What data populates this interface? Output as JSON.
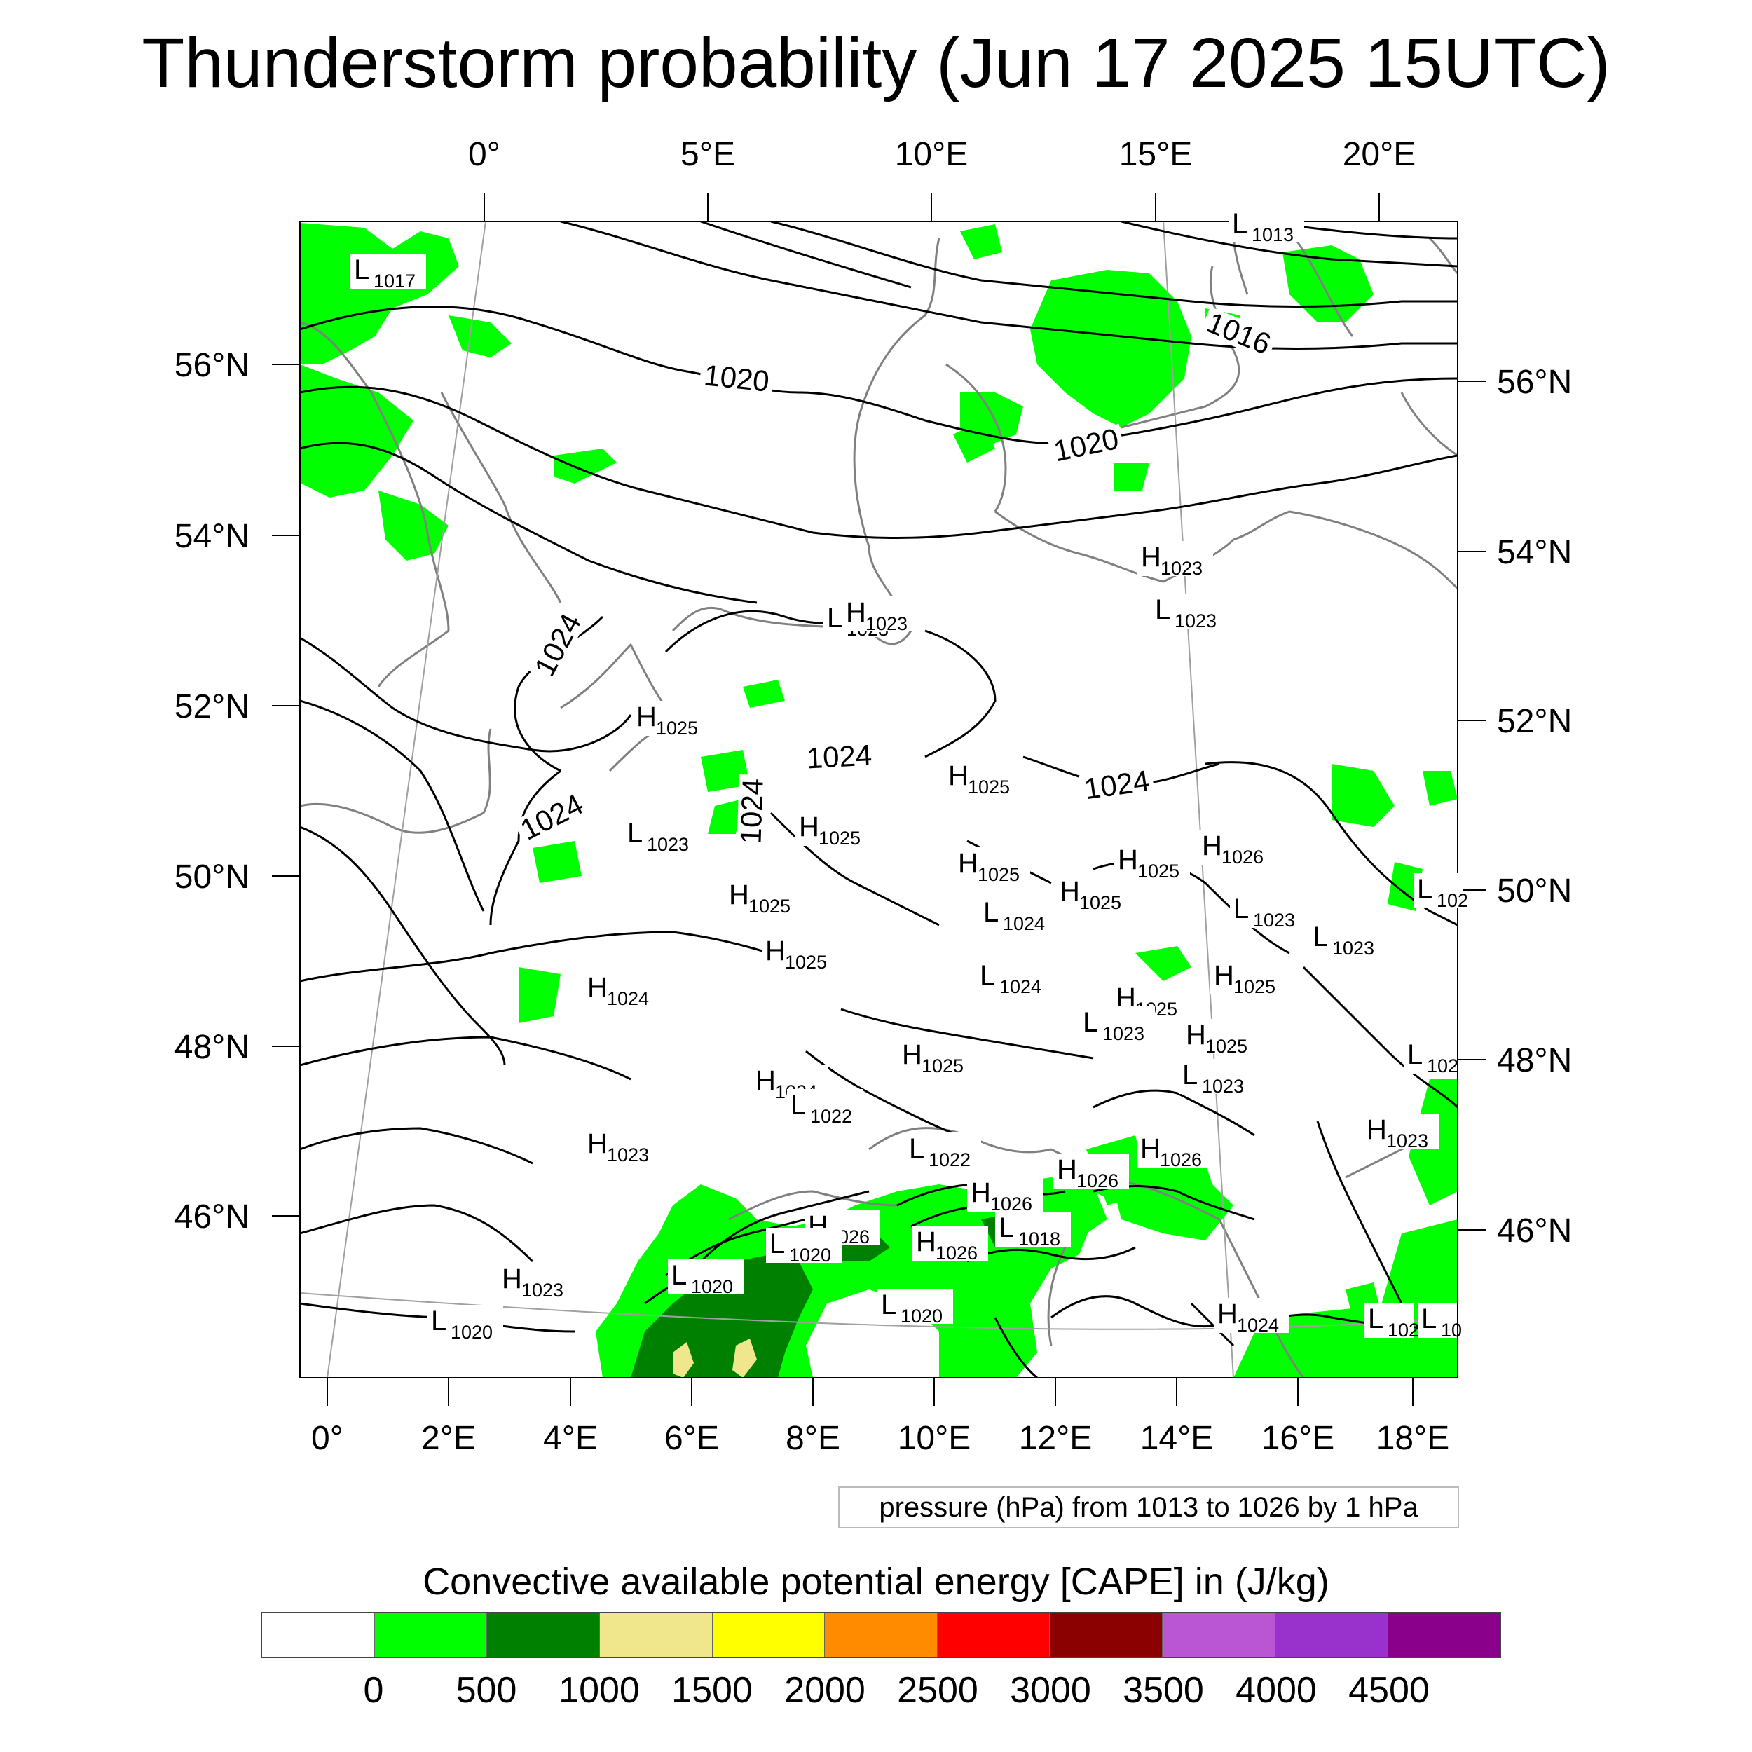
{
  "title": "Thunderstorm probability (Jun 17 2025 15UTC)",
  "top_lon_labels": [
    "0°",
    "5°E",
    "10°E",
    "15°E",
    "20°E"
  ],
  "bottom_lon_labels": [
    "0°",
    "2°E",
    "4°E",
    "6°E",
    "8°E",
    "10°E",
    "12°E",
    "14°E",
    "16°E",
    "18°E"
  ],
  "left_lat_labels": [
    "56°N",
    "54°N",
    "52°N",
    "50°N",
    "48°N",
    "46°N"
  ],
  "right_lat_labels": [
    "56°N",
    "54°N",
    "52°N",
    "50°N",
    "48°N",
    "46°N"
  ],
  "contour_labels": [
    "1016",
    "1020",
    "1020",
    "1024",
    "1024",
    "1024",
    "1024",
    "1024"
  ],
  "pressure_centers": [
    {
      "type": "L",
      "value": "1017"
    },
    {
      "type": "L",
      "value": "1013"
    },
    {
      "type": "H",
      "value": "1023"
    },
    {
      "type": "L",
      "value": "1023"
    },
    {
      "type": "L",
      "value": "1023"
    },
    {
      "type": "H",
      "value": "1023"
    },
    {
      "type": "H",
      "value": "1025"
    },
    {
      "type": "H",
      "value": "1025"
    },
    {
      "type": "L",
      "value": "1023"
    },
    {
      "type": "H",
      "value": "1025"
    },
    {
      "type": "H",
      "value": "1025"
    },
    {
      "type": "H",
      "value": "1026"
    },
    {
      "type": "H",
      "value": "1025"
    },
    {
      "type": "H",
      "value": "1025"
    },
    {
      "type": "H",
      "value": "1025"
    },
    {
      "type": "L",
      "value": "1024"
    },
    {
      "type": "L",
      "value": "102"
    },
    {
      "type": "L",
      "value": "1023"
    },
    {
      "type": "L",
      "value": "1023"
    },
    {
      "type": "H",
      "value": "1025"
    },
    {
      "type": "H",
      "value": "1024"
    },
    {
      "type": "L",
      "value": "1024"
    },
    {
      "type": "H",
      "value": "1025"
    },
    {
      "type": "H",
      "value": "1025"
    },
    {
      "type": "L",
      "value": "1023"
    },
    {
      "type": "H",
      "value": "1025"
    },
    {
      "type": "H",
      "value": "1025"
    },
    {
      "type": "L",
      "value": "102"
    },
    {
      "type": "L",
      "value": "1023"
    },
    {
      "type": "H",
      "value": "1024"
    },
    {
      "type": "L",
      "value": "1022"
    },
    {
      "type": "H",
      "value": "1023"
    },
    {
      "type": "H",
      "value": "1023"
    },
    {
      "type": "L",
      "value": "1022"
    },
    {
      "type": "H",
      "value": "1026"
    },
    {
      "type": "H",
      "value": "1026"
    },
    {
      "type": "H",
      "value": "1026"
    },
    {
      "type": "H",
      "value": "1026"
    },
    {
      "type": "L",
      "value": "1020"
    },
    {
      "type": "H",
      "value": "1026"
    },
    {
      "type": "L",
      "value": "1018"
    },
    {
      "type": "L",
      "value": "1020"
    },
    {
      "type": "H",
      "value": "1023"
    },
    {
      "type": "L",
      "value": "1020"
    },
    {
      "type": "L",
      "value": "1020"
    },
    {
      "type": "H",
      "value": "1024"
    },
    {
      "type": "L",
      "value": "102"
    },
    {
      "type": "L",
      "value": "10"
    }
  ],
  "contour_info": "pressure (hPa) from 1013 to 1026 by 1 hPa",
  "legend": {
    "title": "Convective available potential energy [CAPE] in (J/kg)",
    "colors": [
      "#ffffff",
      "#00ff00",
      "#008000",
      "#f0e68c",
      "#ffff00",
      "#ff8c00",
      "#ff0000",
      "#8b0000",
      "#ba55d3",
      "#9932cc",
      "#8b008b"
    ],
    "labels": [
      "0",
      "500",
      "1000",
      "1500",
      "2000",
      "2500",
      "3000",
      "3500",
      "4000",
      "4500"
    ]
  },
  "colors": {
    "pressure_contour": "#000000",
    "coastline": "#808080",
    "grid": "#a0a0a0",
    "cape_0_500": "#00ff00",
    "cape_500_1000": "#008000",
    "cape_1000_1500": "#f0e68c"
  }
}
